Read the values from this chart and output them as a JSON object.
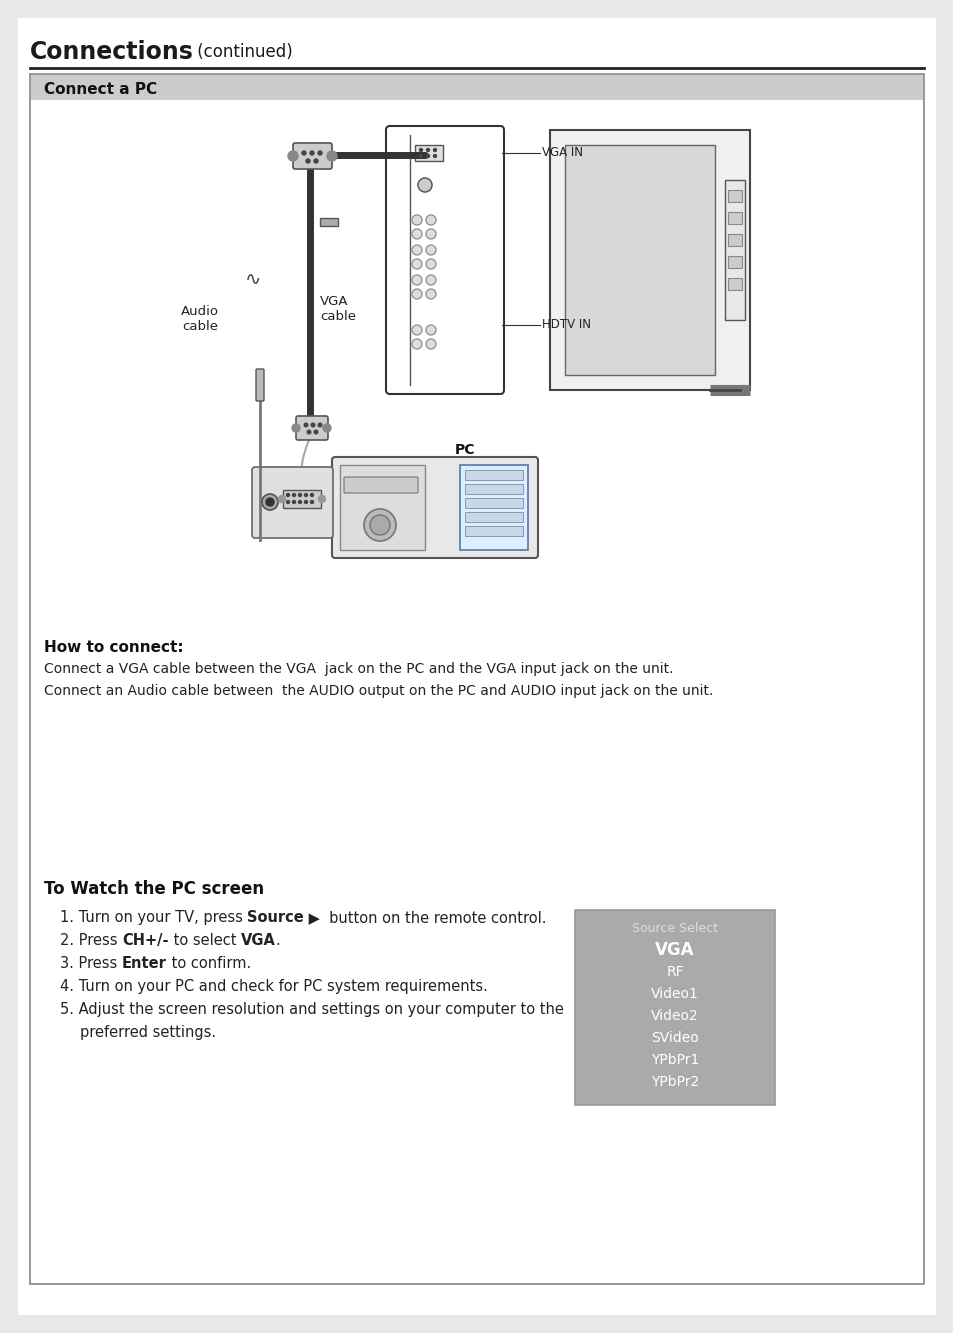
{
  "page_bg": "#ffffff",
  "title_bold": "Connections",
  "title_normal": " (continued)",
  "title_fontsize": 17,
  "box_title": "Connect a PC",
  "section2_title": "How to connect:",
  "section2_line1": "Connect a VGA cable between the VGA  jack on the PC and the VGA input jack on the unit.",
  "section2_line2": "Connect an Audio cable between  the AUDIO output on the PC and AUDIO input jack on the unit.",
  "section3_title": "To Watch the PC screen",
  "source_select_title": "Source Select",
  "source_items": [
    "VGA",
    "RF",
    "Video1",
    "Video2",
    "SVideo",
    "YPbPr1",
    "YPbPr2"
  ],
  "source_selected": "VGA",
  "label_vga_cable": "VGA\ncable",
  "label_audio_cable": "Audio\ncable",
  "label_vga_in": "VGA IN",
  "label_hdtv_in": "HDTV IN",
  "label_pc": "PC",
  "instr1_pre": "1. Turn on your TV, press ",
  "instr1_bold": "Source",
  "instr1_mid": " ▶  button on the remote control.",
  "instr2_pre": "2. Press ",
  "instr2_bold1": "CH+/-",
  "instr2_mid": " to select ",
  "instr2_bold2": "VGA",
  "instr2_end": ".",
  "instr3_pre": "3. Press ",
  "instr3_bold": "Enter",
  "instr3_end": " to confirm.",
  "instr4": "4. Turn on your PC and check for PC system requirements.",
  "instr5a": "5. Adjust the screen resolution and settings on your computer to the",
  "instr5b": "    preferred settings."
}
